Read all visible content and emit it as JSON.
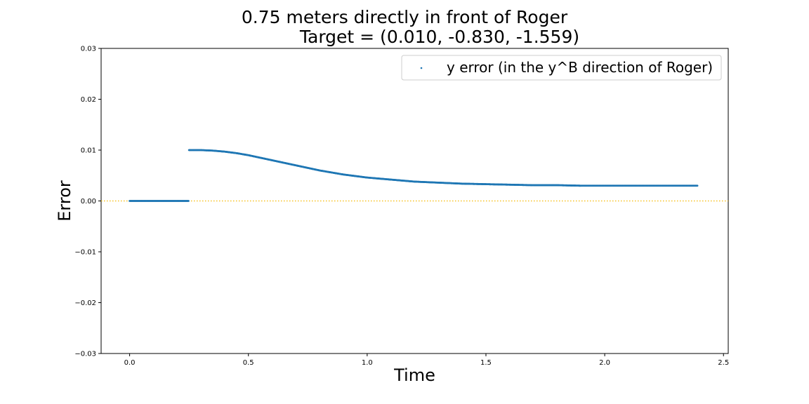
{
  "chart_data": {
    "type": "scatter",
    "title_line1": "0.75 meters directly in front of Roger",
    "title_line2": "Target = (0.010, -0.830, -1.559)",
    "xlabel": "Time",
    "ylabel": "Error",
    "xlim": [
      -0.12,
      2.52
    ],
    "ylim": [
      -0.03,
      0.03
    ],
    "xticks": [
      0.0,
      0.5,
      1.0,
      1.5,
      2.0,
      2.5
    ],
    "xtick_labels": [
      "0.0",
      "0.5",
      "1.0",
      "1.5",
      "2.0",
      "2.5"
    ],
    "yticks": [
      0.03,
      0.02,
      0.01,
      0.0,
      -0.01,
      -0.02,
      -0.03
    ],
    "ytick_labels": [
      "0.03",
      "0.02",
      "0.01",
      "0.00",
      "−0.01",
      "−0.02",
      "−0.03"
    ],
    "grid": false,
    "legend_position": "upper-right",
    "reference_line": {
      "y": 0.0,
      "style": "dotted",
      "color": "#f5b800"
    },
    "series": [
      {
        "name": "y error (in the y^B direction of Roger)",
        "color": "#1f77b4",
        "x": [
          0.0,
          0.1,
          0.2,
          0.25,
          0.25,
          0.3,
          0.35,
          0.4,
          0.45,
          0.5,
          0.55,
          0.6,
          0.65,
          0.7,
          0.75,
          0.8,
          0.85,
          0.9,
          0.95,
          1.0,
          1.1,
          1.2,
          1.3,
          1.4,
          1.5,
          1.6,
          1.7,
          1.8,
          1.9,
          2.0,
          2.1,
          2.2,
          2.3,
          2.39
        ],
        "y": [
          0.0,
          0.0,
          0.0,
          0.0,
          0.01,
          0.01,
          0.0099,
          0.0097,
          0.0094,
          0.009,
          0.0085,
          0.008,
          0.0075,
          0.007,
          0.0065,
          0.006,
          0.0056,
          0.0052,
          0.0049,
          0.0046,
          0.0042,
          0.0038,
          0.0036,
          0.0034,
          0.0033,
          0.0032,
          0.0031,
          0.0031,
          0.003,
          0.003,
          0.003,
          0.003,
          0.003,
          0.003
        ]
      }
    ]
  }
}
